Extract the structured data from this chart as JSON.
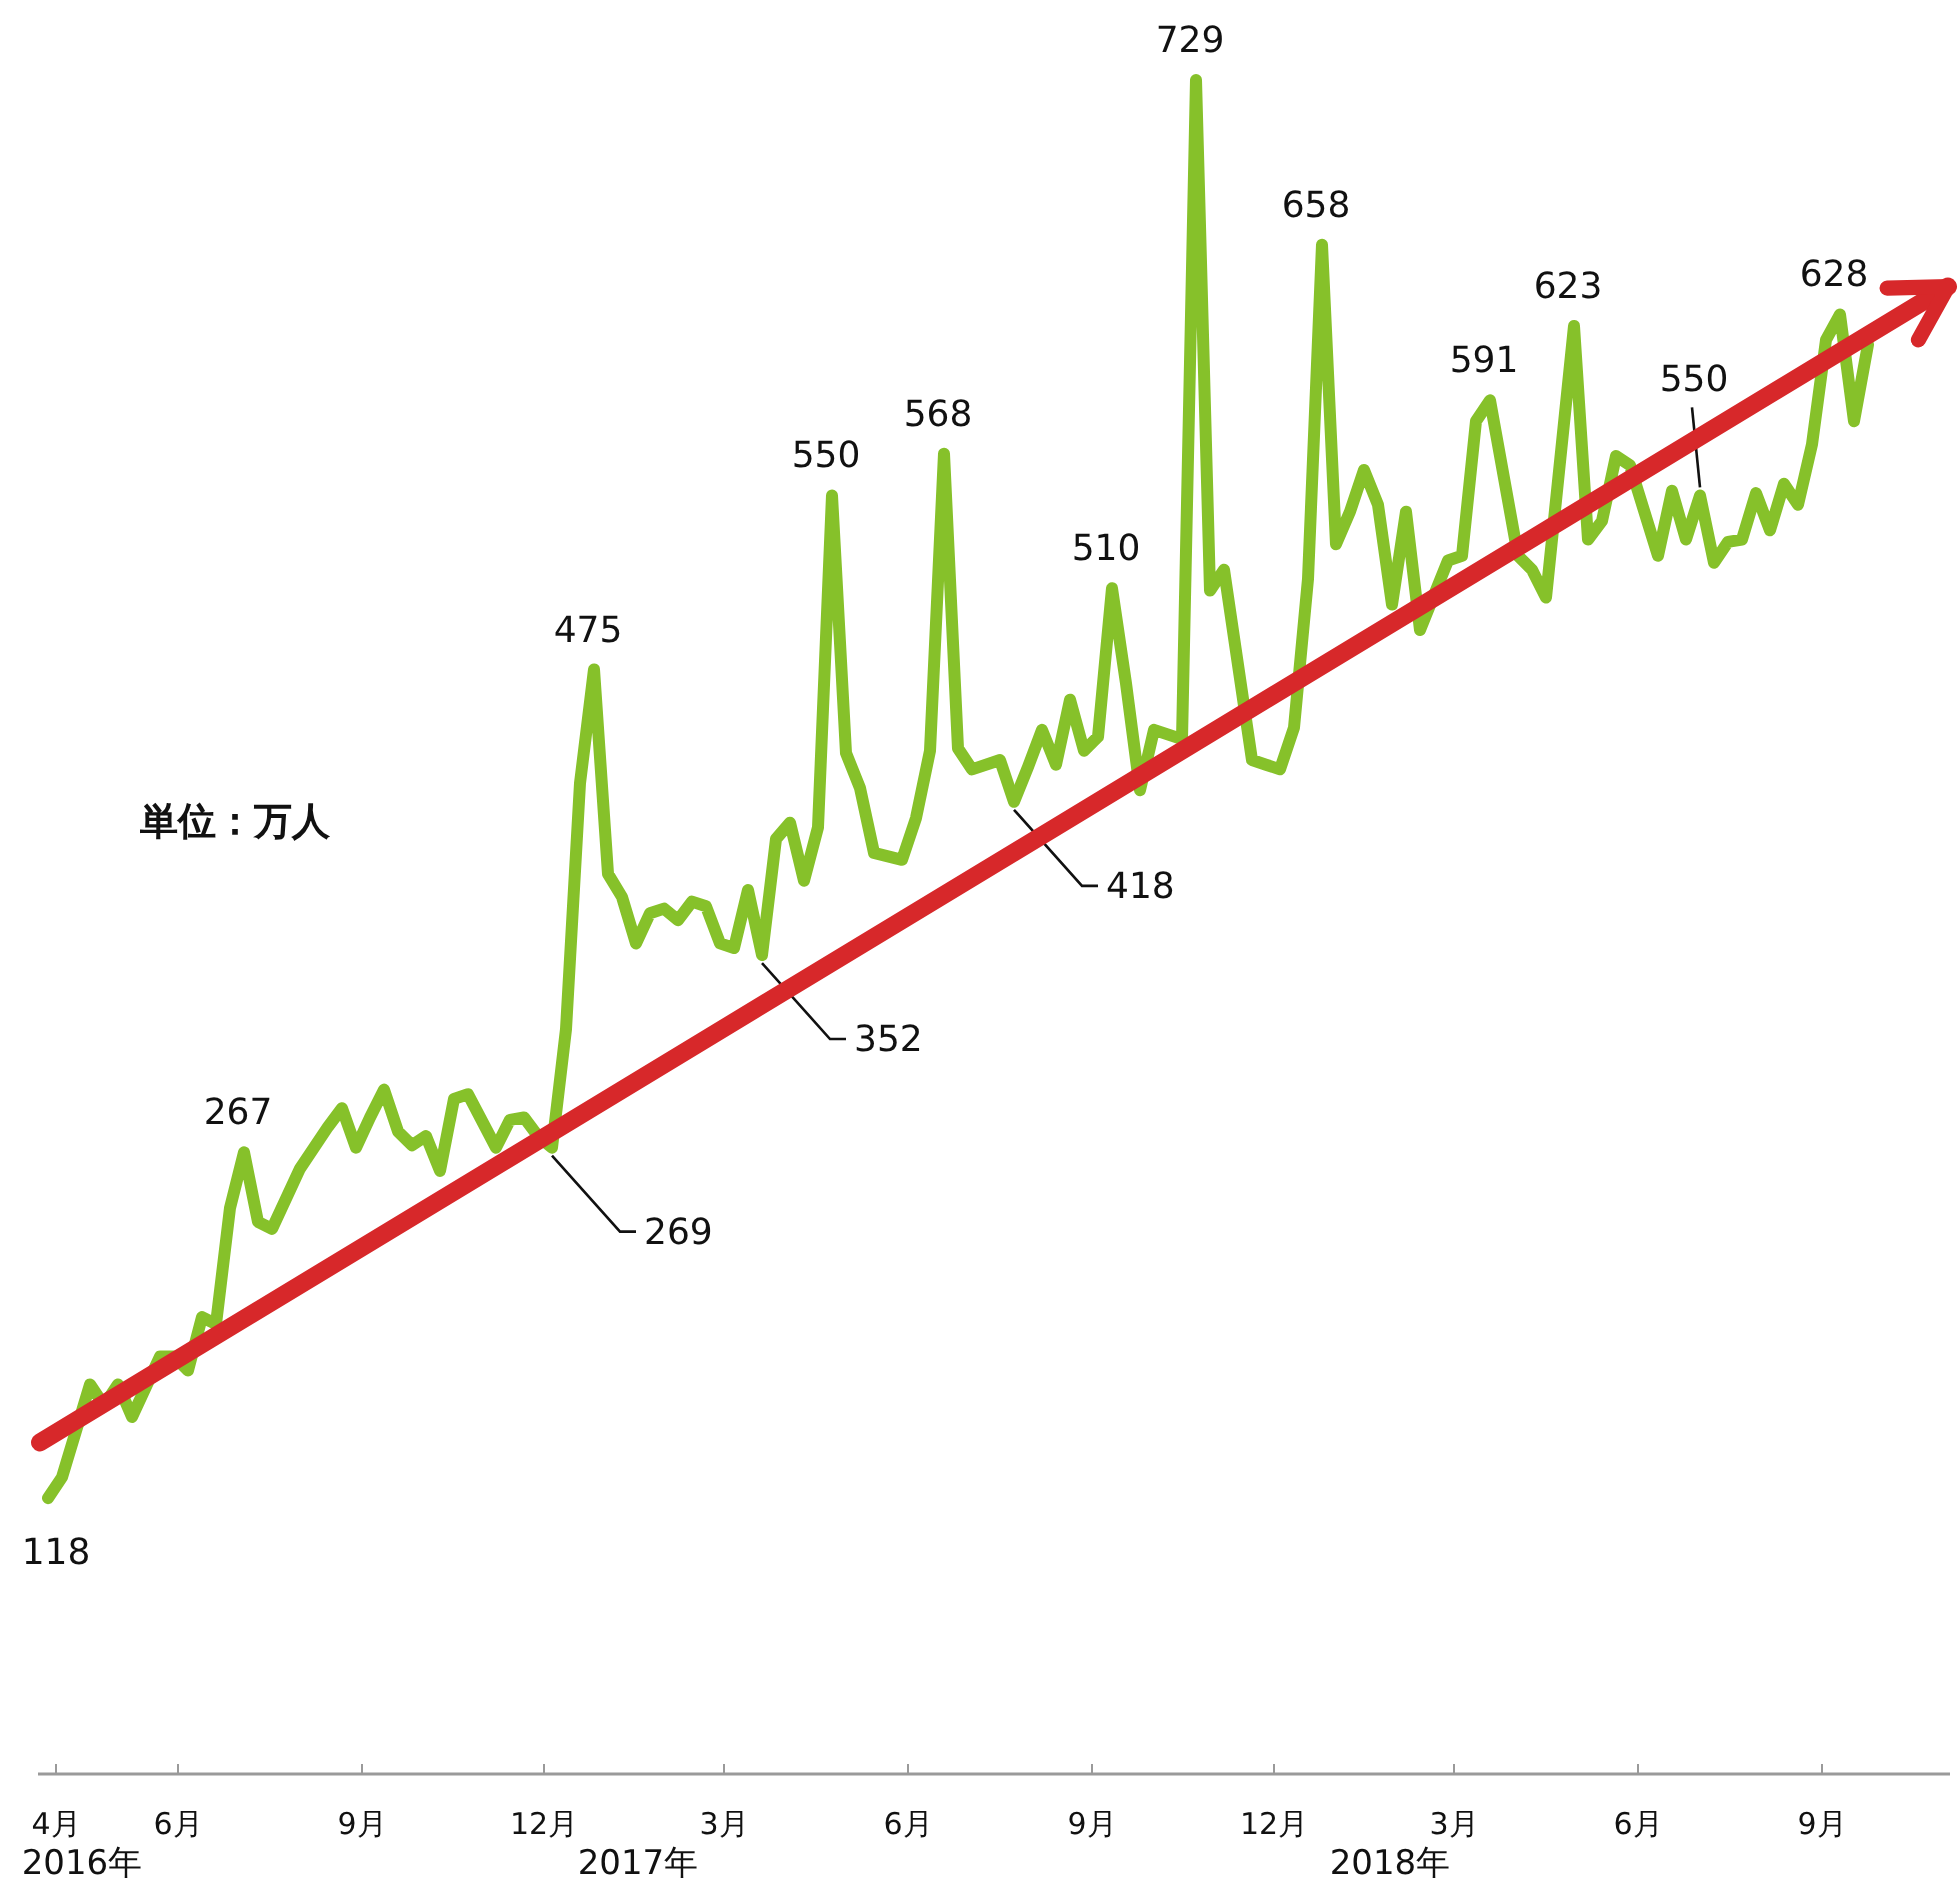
{
  "chart_data": {
    "type": "line",
    "annotations": [
      "単位：万人",
      "2016年",
      "2017年",
      "2018年"
    ],
    "xlim": [
      "2016-03-23",
      "2018-11-04"
    ],
    "tick_labels": "x",
    "xticks": [
      {
        "value": "2016-04-01",
        "label": "4月"
      },
      {
        "value": "2016-06-01",
        "label": "6月"
      },
      {
        "value": "2016-09-01",
        "label": "9月"
      },
      {
        "value": "2016-12-01",
        "label": "12月"
      },
      {
        "value": "2017-03-01",
        "label": "3月"
      },
      {
        "value": "2017-06-01",
        "label": "6月"
      },
      {
        "value": "2017-09-01",
        "label": "9月"
      },
      {
        "value": "2017-12-01",
        "label": "12月"
      },
      {
        "value": "2018-03-01",
        "label": "3月"
      },
      {
        "value": "2018-06-01",
        "label": "6月"
      },
      {
        "value": "2018-09-01",
        "label": "9月"
      }
    ],
    "series": [
      {
        "color": "#86c12a",
        "x": [
          "2016-03-28",
          "2016-04-04",
          "2016-04-18",
          "2016-04-25",
          "2016-05-02",
          "2016-05-09",
          "2016-05-23",
          "2016-05-30",
          "2016-06-06",
          "2016-06-13",
          "2016-06-20",
          "2016-06-27",
          "2016-07-04",
          "2016-07-11",
          "2016-07-18",
          "2016-08-01",
          "2016-08-15",
          "2016-08-22",
          "2016-08-29",
          "2016-09-05",
          "2016-09-12",
          "2016-09-19",
          "2016-09-26",
          "2016-10-03",
          "2016-10-10",
          "2016-10-17",
          "2016-10-24",
          "2016-11-07",
          "2016-11-14",
          "2016-11-21",
          "2016-11-28",
          "2016-12-05",
          "2016-12-12",
          "2016-12-19",
          "2016-12-26",
          "2017-01-02",
          "2017-01-09",
          "2017-01-16",
          "2017-01-23",
          "2017-01-30",
          "2017-02-06",
          "2017-02-13",
          "2017-02-20",
          "2017-02-27",
          "2017-03-06",
          "2017-03-13",
          "2017-03-20",
          "2017-03-27",
          "2017-04-03",
          "2017-04-10",
          "2017-04-17",
          "2017-04-24",
          "2017-05-01",
          "2017-05-08",
          "2017-05-15",
          "2017-05-29",
          "2017-06-05",
          "2017-06-12",
          "2017-06-19",
          "2017-06-26",
          "2017-07-03",
          "2017-07-17",
          "2017-07-24",
          "2017-07-31",
          "2017-08-07",
          "2017-08-14",
          "2017-08-21",
          "2017-08-28",
          "2017-09-04",
          "2017-09-11",
          "2017-09-18",
          "2017-09-25",
          "2017-10-02",
          "2017-10-16",
          "2017-10-23",
          "2017-10-30",
          "2017-11-06",
          "2017-11-20",
          "2017-11-27",
          "2017-12-04",
          "2017-12-11",
          "2017-12-18",
          "2017-12-25",
          "2018-01-01",
          "2018-01-08",
          "2018-01-15",
          "2018-01-22",
          "2018-01-29",
          "2018-02-05",
          "2018-02-12",
          "2018-02-26",
          "2018-03-05",
          "2018-03-12",
          "2018-03-19",
          "2018-04-02",
          "2018-04-09",
          "2018-04-16",
          "2018-04-30",
          "2018-05-07",
          "2018-05-14",
          "2018-05-21",
          "2018-05-28",
          "2018-06-11",
          "2018-06-18",
          "2018-06-25",
          "2018-07-02",
          "2018-07-09",
          "2018-07-16",
          "2018-07-23",
          "2018-07-30",
          "2018-08-06",
          "2018-08-13",
          "2018-08-20",
          "2018-08-27",
          "2018-09-03",
          "2018-09-10",
          "2018-09-17",
          "2018-09-24"
        ],
        "values": [
          118,
          127,
          167,
          158,
          167,
          153,
          179,
          179,
          173,
          196,
          193,
          243,
          267,
          237,
          234,
          260,
          278,
          286,
          269,
          282,
          294,
          276,
          270,
          274,
          259,
          290,
          292,
          269,
          281,
          282,
          274,
          269,
          320,
          426,
          475,
          387,
          377,
          357,
          370,
          372,
          367,
          375,
          373,
          357,
          355,
          380,
          352,
          402,
          409,
          384,
          407,
          550,
          439,
          424,
          396,
          393,
          411,
          440,
          568,
          441,
          432,
          436,
          418,
          433,
          449,
          434,
          462,
          440,
          446,
          510,
          469,
          423,
          449,
          445,
          729,
          509,
          518,
          436,
          434,
          432,
          450,
          514,
          658,
          529,
          543,
          561,
          546,
          503,
          543,
          492,
          522,
          524,
          582,
          591,
          524,
          518,
          506,
          623,
          531,
          539,
          567,
          563,
          524,
          552,
          531,
          550,
          521,
          530,
          531,
          551,
          535,
          555,
          546,
          572,
          617,
          628,
          582,
          615
        ],
        "value_labels": [
          "118",
          null,
          null,
          null,
          null,
          null,
          null,
          null,
          null,
          null,
          null,
          null,
          "267",
          null,
          null,
          null,
          null,
          null,
          null,
          null,
          null,
          null,
          null,
          null,
          null,
          null,
          null,
          null,
          null,
          null,
          null,
          "269",
          null,
          null,
          "475",
          null,
          null,
          null,
          null,
          null,
          null,
          null,
          null,
          null,
          null,
          null,
          "352",
          null,
          null,
          null,
          null,
          "550",
          null,
          null,
          null,
          null,
          null,
          null,
          "568",
          null,
          null,
          null,
          "418",
          null,
          null,
          null,
          null,
          null,
          null,
          "510",
          null,
          null,
          null,
          null,
          "729",
          null,
          null,
          null,
          null,
          null,
          null,
          null,
          "658",
          null,
          null,
          null,
          null,
          null,
          null,
          null,
          null,
          null,
          null,
          "591",
          null,
          null,
          null,
          "623",
          null,
          null,
          null,
          null,
          null,
          null,
          null,
          "550",
          null,
          null,
          null,
          null,
          null,
          null,
          null,
          null,
          null,
          "628",
          null,
          null
        ]
      },
      {
        "color": "#d7282a",
        "x": [
          "2016-03-24",
          "2018-11-03"
        ],
        "values": [
          142,
          640
        ]
      }
    ]
  }
}
